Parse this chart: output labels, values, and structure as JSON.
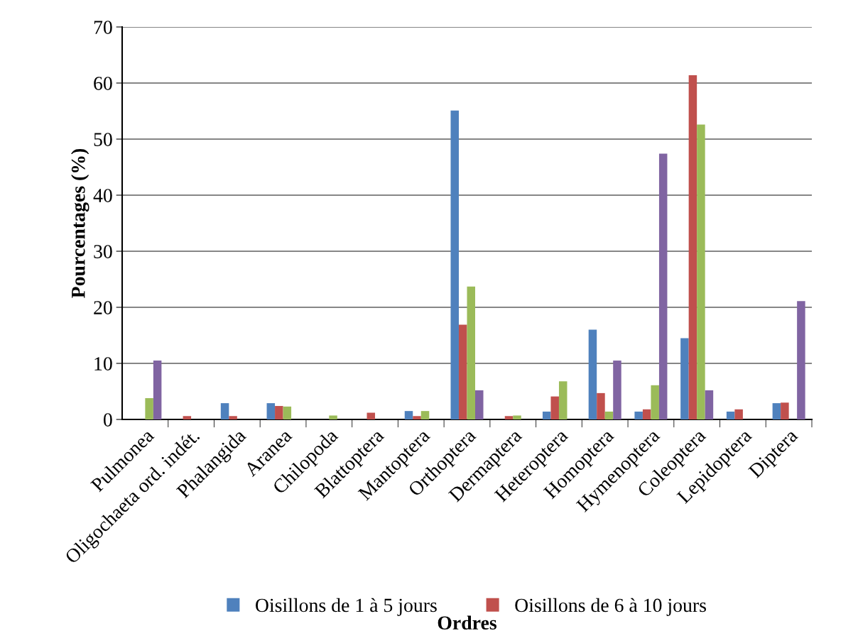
{
  "chart_data": {
    "type": "bar",
    "xlabel": "Ordres",
    "ylabel": "Pourcentages (%)",
    "categories": [
      "Pulmonea",
      "Oligochaeta ord. indét.",
      "Phalangida",
      "Aranea",
      "Chilopoda",
      "Blattoptera",
      "Mantoptera",
      "Orthoptera",
      "Dermaptera",
      "Heteroptera",
      "Homoptera",
      "Hymenoptera",
      "Coleoptera",
      "Lepidoptera",
      "Diptera"
    ],
    "series": [
      {
        "name": "Oisillons de 1 à 5 jours",
        "color": "#4f81bd",
        "values": [
          0,
          0,
          2.9,
          2.9,
          0,
          0,
          1.5,
          55.1,
          0,
          1.4,
          16,
          1.4,
          14.5,
          1.4,
          2.9
        ]
      },
      {
        "name": "Oisillons de 6 à 10 jours",
        "color": "#c0504d",
        "values": [
          0,
          0.6,
          0.6,
          2.4,
          0,
          1.2,
          0.6,
          16.9,
          0.6,
          4.1,
          4.7,
          1.8,
          61.4,
          1.8,
          3.0
        ]
      },
      {
        "color": "#9bbb59",
        "values": [
          3.8,
          0,
          0,
          2.3,
          0.7,
          0,
          1.5,
          23.7,
          0.7,
          6.8,
          1.4,
          6.1,
          52.6,
          0,
          0
        ]
      },
      {
        "color": "#8064a2",
        "values": [
          10.5,
          0,
          0,
          0,
          0,
          0,
          0,
          5.2,
          0,
          0,
          10.5,
          47.4,
          5.2,
          0,
          21.1
        ]
      }
    ],
    "ylim": [
      0,
      70
    ],
    "yticks": [
      0,
      10,
      20,
      30,
      40,
      50,
      60,
      70
    ],
    "grid": "y",
    "legend": "bottom"
  }
}
